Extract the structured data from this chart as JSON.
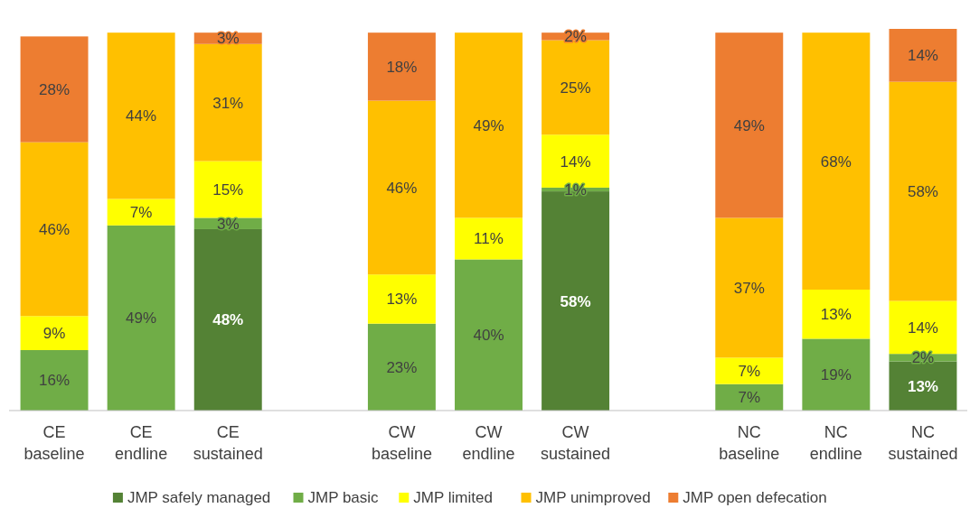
{
  "chart_data": {
    "type": "bar",
    "stacked": true,
    "legend": "bottom",
    "categories": [
      "CE baseline",
      "CE endline",
      "CE sustained",
      null,
      "CW baseline",
      "CW endline",
      "CW sustained",
      null,
      "NC baseline",
      "NC endline",
      "NC sustained"
    ],
    "series": [
      {
        "name": "JMP safely managed",
        "color": "#548235",
        "values": [
          null,
          null,
          48,
          null,
          null,
          null,
          58,
          null,
          null,
          null,
          13
        ],
        "value_labels": [
          null,
          null,
          "48%",
          null,
          null,
          null,
          "58%",
          null,
          null,
          null,
          "13%"
        ]
      },
      {
        "name": "JMP basic",
        "color": "#70ad47",
        "values": [
          16,
          49,
          3,
          null,
          23,
          40,
          1,
          null,
          7,
          19,
          2
        ],
        "value_labels": [
          "16%",
          "49%",
          "3%",
          null,
          "23%",
          "40%",
          "1%",
          null,
          "7%",
          "19%",
          "2%"
        ]
      },
      {
        "name": "JMP limited",
        "color": "#ffff00",
        "values": [
          9,
          7,
          15,
          null,
          13,
          11,
          14,
          null,
          7,
          13,
          14
        ],
        "value_labels": [
          "9%",
          "7%",
          "15%",
          null,
          "13%",
          "11%",
          "14%",
          null,
          "7%",
          "13%",
          "14%"
        ]
      },
      {
        "name": "JMP unimproved",
        "color": "#ffc000",
        "values": [
          46,
          44,
          31,
          null,
          46,
          49,
          25,
          null,
          37,
          68,
          58
        ],
        "value_labels": [
          "46%",
          "44%",
          "31%",
          null,
          "46%",
          "49%",
          "25%",
          null,
          "37%",
          "68%",
          "58%"
        ]
      },
      {
        "name": "JMP open defecation",
        "color": "#ed7d31",
        "values": [
          28,
          null,
          3,
          null,
          18,
          null,
          2,
          null,
          49,
          null,
          14
        ],
        "value_labels": [
          "28%",
          null,
          "3%",
          null,
          "18%",
          null,
          "2%",
          null,
          "49%",
          null,
          "14%"
        ]
      }
    ]
  }
}
